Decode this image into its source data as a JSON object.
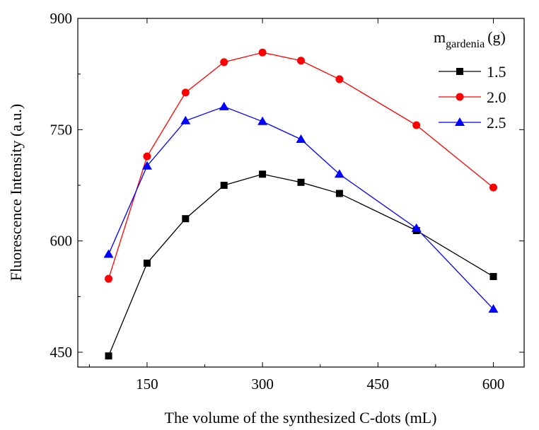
{
  "chart_data": {
    "type": "line",
    "xlabel": "The volume of the synthesized C-dots (mL)",
    "ylabel": "Fluorescence Intensity (a.u.)",
    "xlim": [
      60,
      640
    ],
    "ylim": [
      430,
      900
    ],
    "xticks": [
      150,
      300,
      450,
      600
    ],
    "xtick_labels": [
      "150",
      "300",
      "450",
      "600"
    ],
    "yticks": [
      450,
      600,
      750,
      900
    ],
    "ytick_labels": [
      "450",
      "600",
      "750",
      "900"
    ],
    "grid": false,
    "legend": {
      "title_main": "m",
      "title_sub": "gardenia",
      "title_unit": "(g)",
      "placement": "top-right"
    },
    "series": [
      {
        "name": "1.5",
        "color": "#000000",
        "marker": "square",
        "x": [
          100,
          150,
          200,
          250,
          300,
          350,
          400,
          500,
          600
        ],
        "values": [
          445,
          570,
          630,
          675,
          690,
          679,
          664,
          614,
          552
        ]
      },
      {
        "name": "2.0",
        "color": "#ff0000",
        "marker": "circle",
        "x": [
          100,
          150,
          200,
          250,
          300,
          350,
          400,
          500,
          600
        ],
        "values": [
          549,
          714,
          800,
          841,
          854,
          843,
          818,
          756,
          672
        ]
      },
      {
        "name": "2.5",
        "color": "#0000ff",
        "marker": "triangle",
        "x": [
          100,
          150,
          200,
          250,
          300,
          350,
          400,
          500,
          600
        ],
        "values": [
          582,
          701,
          762,
          781,
          761,
          737,
          690,
          617,
          508
        ]
      }
    ]
  }
}
